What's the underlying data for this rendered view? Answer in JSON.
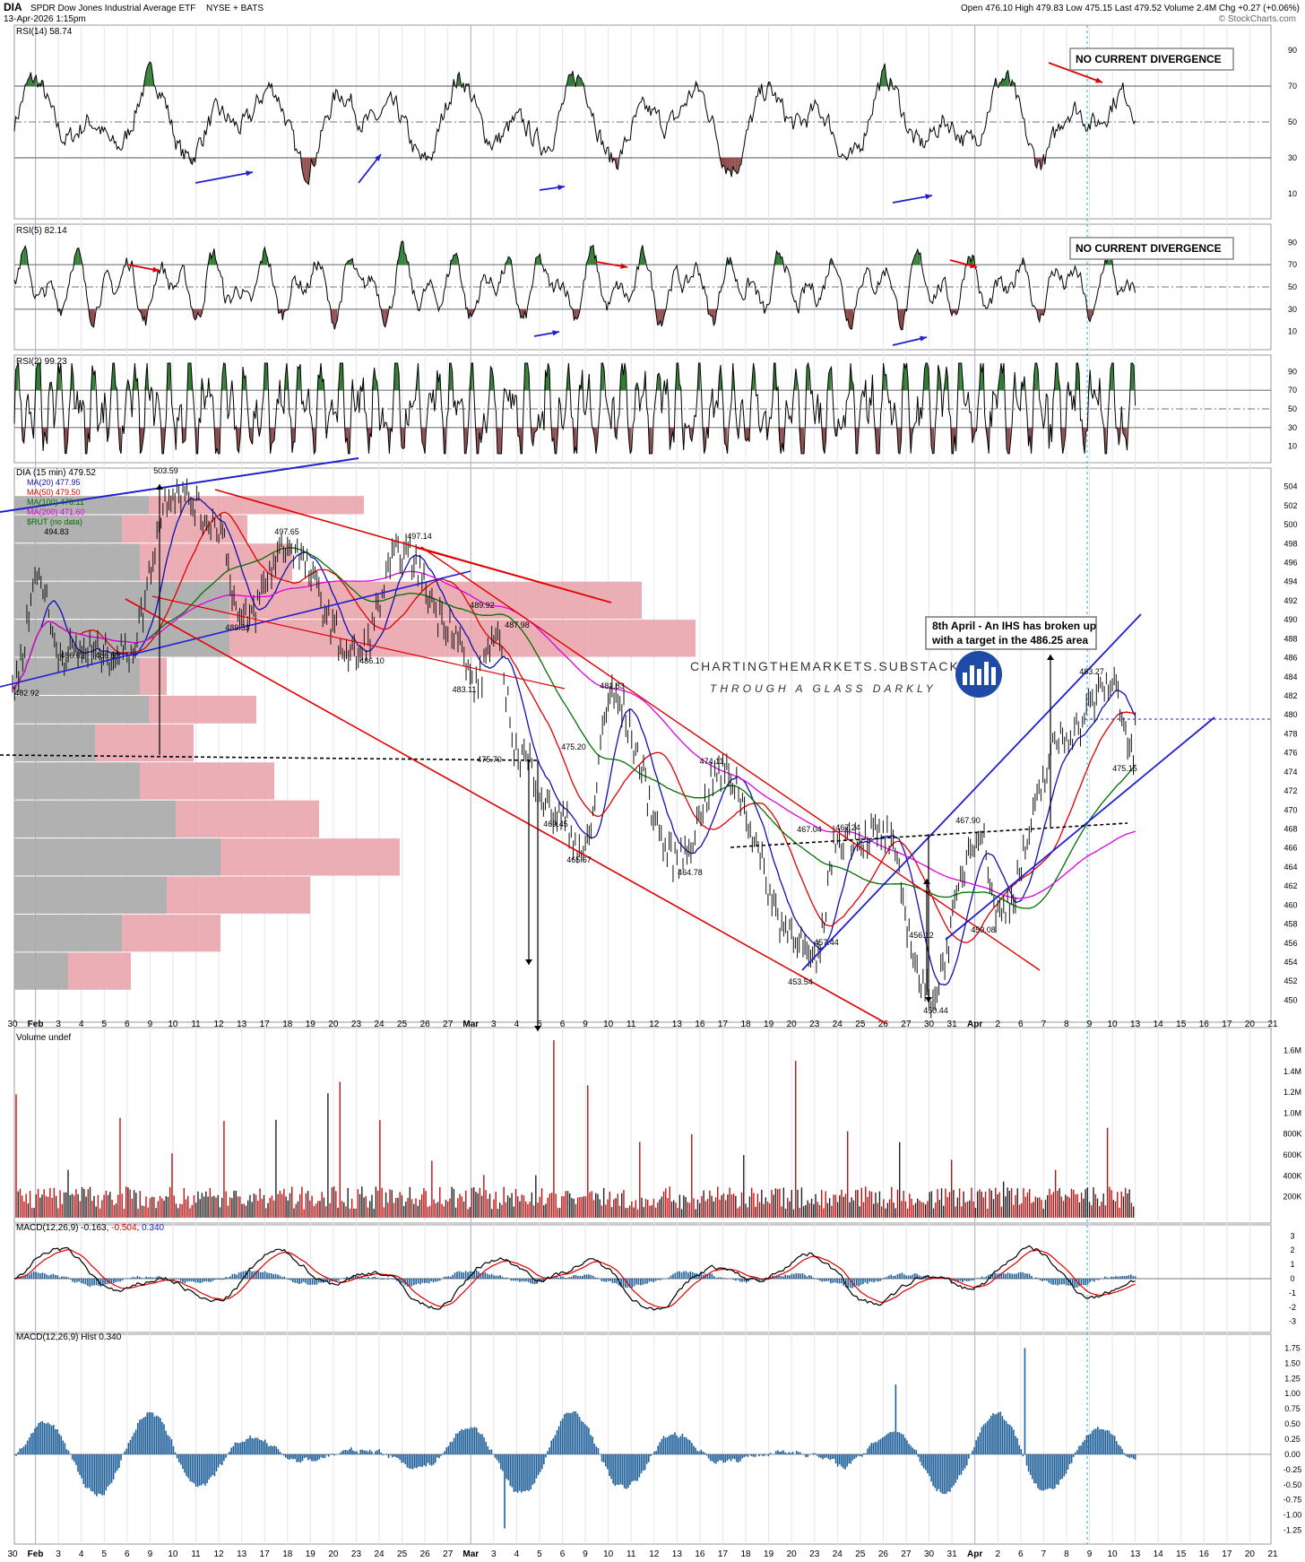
{
  "header": {
    "symbol": "DIA",
    "name": "SPDR Dow Jones Industrial Average ETF",
    "exchange": "NYSE + BATS",
    "datetime": "13-Apr-2026 1:15pm",
    "quote": "Open 476.10  High 479.83  Low 475.15  Last 479.52  Volume 2.4M  Chg +0.27 (+0.06%)",
    "open": "476.10",
    "high": "479.83",
    "low": "475.15",
    "last": "479.52",
    "volume": "2.4M",
    "chg": "+0.27 (+0.06%)",
    "brand": "© StockCharts.com"
  },
  "watermark": {
    "line1": "CHARTINGTHEMARKETS.SUBSTACK.COM",
    "line2": "THROUGH A GLASS DARKLY"
  },
  "panels": {
    "rsi14": {
      "label": "RSI(14) 58.74",
      "note": "NO CURRENT DIVERGENCE",
      "ticks": [
        "90",
        "70",
        "50",
        "30",
        "10"
      ]
    },
    "rsi5": {
      "label": "RSI(5) 82.14",
      "note": "NO CURRENT DIVERGENCE",
      "ticks": [
        "90",
        "70",
        "50",
        "30",
        "10"
      ]
    },
    "rsi2": {
      "label": "RSI(2) 99.23",
      "ticks": [
        "90",
        "70",
        "50",
        "30",
        "10"
      ]
    },
    "volume": {
      "label": "Volume undef",
      "ticks": [
        "1.6M",
        "1.4M",
        "1.2M",
        "1.0M",
        "800K",
        "600K",
        "400K",
        "200K"
      ]
    },
    "macd": {
      "label": "MACD(12,26,9)",
      "v1": "-0.163",
      "v2": "-0.504",
      "v3": "0.340",
      "ticks": [
        "3",
        "2",
        "1",
        "0",
        "-1",
        "-2",
        "-3"
      ]
    },
    "hist": {
      "label": "MACD(12,26,9) Hist 0.340",
      "ticks": [
        "1.75",
        "1.50",
        "1.25",
        "1.00",
        "0.75",
        "0.50",
        "0.25",
        "0.00",
        "-0.25",
        "-0.50",
        "-0.75",
        "-1.00",
        "-1.25"
      ]
    }
  },
  "legend": [
    {
      "text": "DIA (15 min) 479.52",
      "color": "#000000"
    },
    {
      "text": "MA(20) 477.95",
      "color": "#1010b0"
    },
    {
      "text": "MA(50) 479.50",
      "color": "#e00000"
    },
    {
      "text": "MA(100) 478.11",
      "color": "#007000"
    },
    {
      "text": "MA(200) 471.60",
      "color": "#e000e0"
    },
    {
      "text": "$RUT (no data)",
      "color": "#007000"
    }
  ],
  "price_axis": [
    "504",
    "502",
    "500",
    "498",
    "496",
    "494",
    "492",
    "490",
    "488",
    "486",
    "484",
    "482",
    "480",
    "478",
    "476",
    "474",
    "472",
    "470",
    "468",
    "466",
    "464",
    "462",
    "460",
    "458",
    "456",
    "454",
    "452",
    "450"
  ],
  "callout": {
    "line1": "8th April - An IHS has broken up",
    "line2": "with a target in the 486.25 area"
  },
  "annotations": [
    "503.59",
    "494.83",
    "497.65",
    "497.14",
    "489.92",
    "489.53",
    "487.98",
    "486.62",
    "486.57",
    "486.10",
    "483.11",
    "482.92",
    "481.83",
    "475.70",
    "475.20",
    "474.11",
    "469.45",
    "465.67",
    "464.78",
    "467.04",
    "467.24",
    "467.90",
    "457.44",
    "453.54",
    "456.12",
    "450.44",
    "459.08",
    "483.27",
    "475.15"
  ],
  "x_axis": {
    "labels": [
      "30",
      "Feb",
      "3",
      "4",
      "5",
      "6",
      "9",
      "10",
      "11",
      "12",
      "13",
      "17",
      "18",
      "19",
      "20",
      "23",
      "24",
      "25",
      "26",
      "27",
      "Mar",
      "3",
      "4",
      "5",
      "6",
      "9",
      "10",
      "11",
      "12",
      "13",
      "16",
      "17",
      "18",
      "19",
      "20",
      "23",
      "24",
      "25",
      "26",
      "27",
      "30",
      "31",
      "Apr",
      "2",
      "6",
      "7",
      "8",
      "9",
      "10",
      "13",
      "14",
      "15",
      "16",
      "17",
      "20",
      "21"
    ]
  },
  "colors": {
    "up": "#2e7d32",
    "down": "#8d4a4a",
    "red": "#e00000",
    "blue": "#1f1fd0",
    "hist": "#1f5f99",
    "vp_gray": "#a8a8a8",
    "vp_red": "#e8a0a8"
  },
  "chart_data": {
    "type": "line",
    "title": "DIA SPDR Dow Jones Industrial Average ETF (15 min)",
    "xlabel": "",
    "ylabel": "",
    "ylim": [
      449,
      505
    ],
    "pivots": {
      "x": [
        "Jan 30",
        "Feb 2",
        "Feb 3",
        "Feb 6",
        "Feb 10",
        "Feb 12",
        "Feb 13",
        "Feb 18",
        "Feb 23",
        "Feb 25",
        "Feb 27",
        "Mar 2",
        "Mar 3",
        "Mar 4",
        "Mar 6",
        "Mar 9",
        "Mar 10",
        "Mar 13",
        "Mar 17",
        "Mar 20",
        "Mar 23",
        "Mar 24",
        "Mar 26",
        "Mar 30",
        "Apr 1",
        "Apr 2",
        "Apr 8",
        "Apr 10",
        "Apr 13"
      ],
      "price": [
        482.92,
        494.83,
        486.62,
        486.57,
        503.59,
        500.0,
        489.53,
        497.65,
        486.1,
        497.14,
        489.92,
        483.11,
        487.98,
        475.7,
        469.45,
        465.67,
        481.83,
        464.78,
        474.11,
        457.44,
        453.54,
        467.04,
        467.24,
        450.44,
        467.9,
        459.08,
        478.0,
        483.27,
        475.15
      ]
    },
    "series": [
      {
        "name": "DIA (15 min)",
        "last": 479.52
      },
      {
        "name": "MA(20)",
        "last": 477.95
      },
      {
        "name": "MA(50)",
        "last": 479.5
      },
      {
        "name": "MA(100)",
        "last": 478.11
      },
      {
        "name": "MA(200)",
        "last": 471.6
      }
    ],
    "grid": true,
    "legend_position": "top-left"
  }
}
